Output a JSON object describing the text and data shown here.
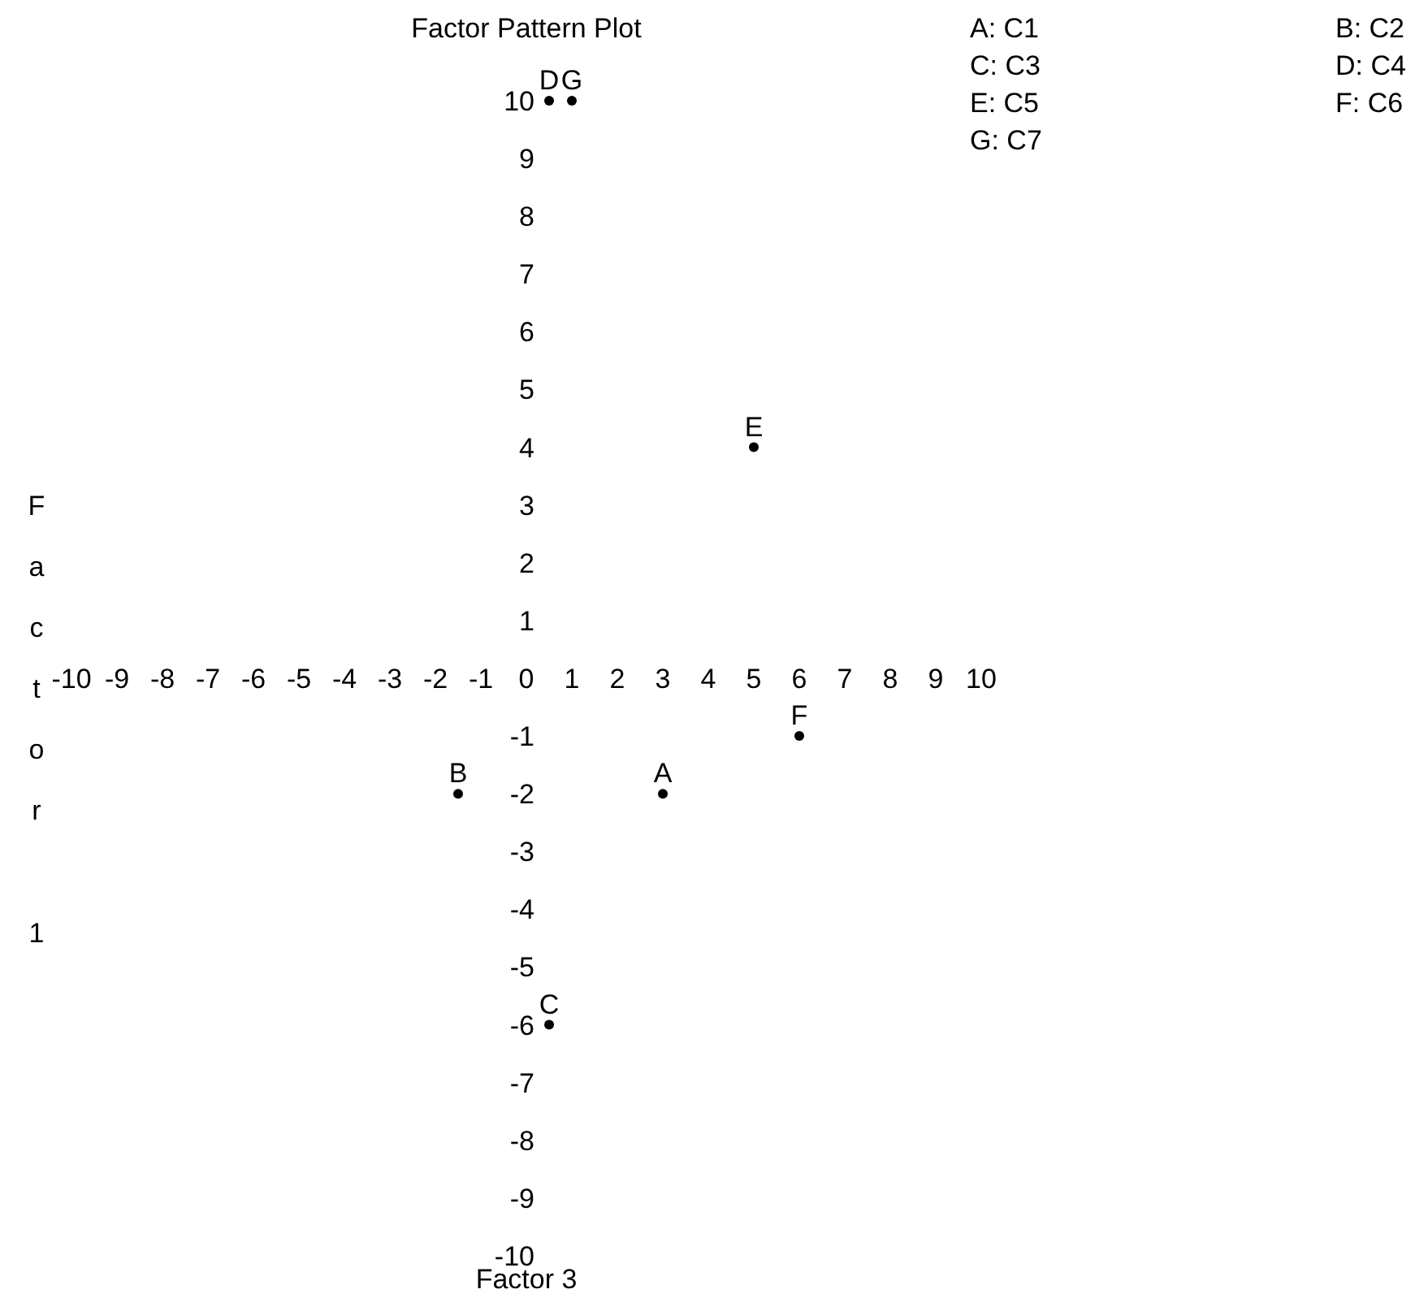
{
  "chart_data": {
    "type": "scatter",
    "title": "Factor Pattern Plot",
    "xlabel": "Factor 3",
    "ylabel": "Factor 1",
    "x": [
      3,
      -1.5,
      0.5,
      0.5,
      5,
      6,
      1
    ],
    "values": [
      -2,
      -2,
      -6,
      10,
      4,
      -1,
      10
    ],
    "value_labels": [
      "A",
      "B",
      "C",
      "D",
      "E",
      "F",
      "G"
    ],
    "color": "#000000",
    "marker": "circle",
    "xlim": [
      -10,
      10
    ],
    "xticks": [
      -10,
      -9,
      -8,
      -7,
      -6,
      -5,
      -4,
      -3,
      -2,
      -1,
      0,
      1,
      2,
      3,
      4,
      5,
      6,
      7,
      8,
      9,
      10
    ],
    "ylim": [
      -10,
      10
    ],
    "yticks": [
      -10,
      -9,
      -8,
      -7,
      -6,
      -5,
      -4,
      -3,
      -2,
      -1,
      1,
      2,
      3,
      4,
      5,
      6,
      7,
      8,
      9,
      10
    ],
    "annotations": [
      "A: C1",
      "B: C2",
      "C: C3",
      "D: C4",
      "E: C5",
      "F: C6",
      "G: C7"
    ]
  }
}
